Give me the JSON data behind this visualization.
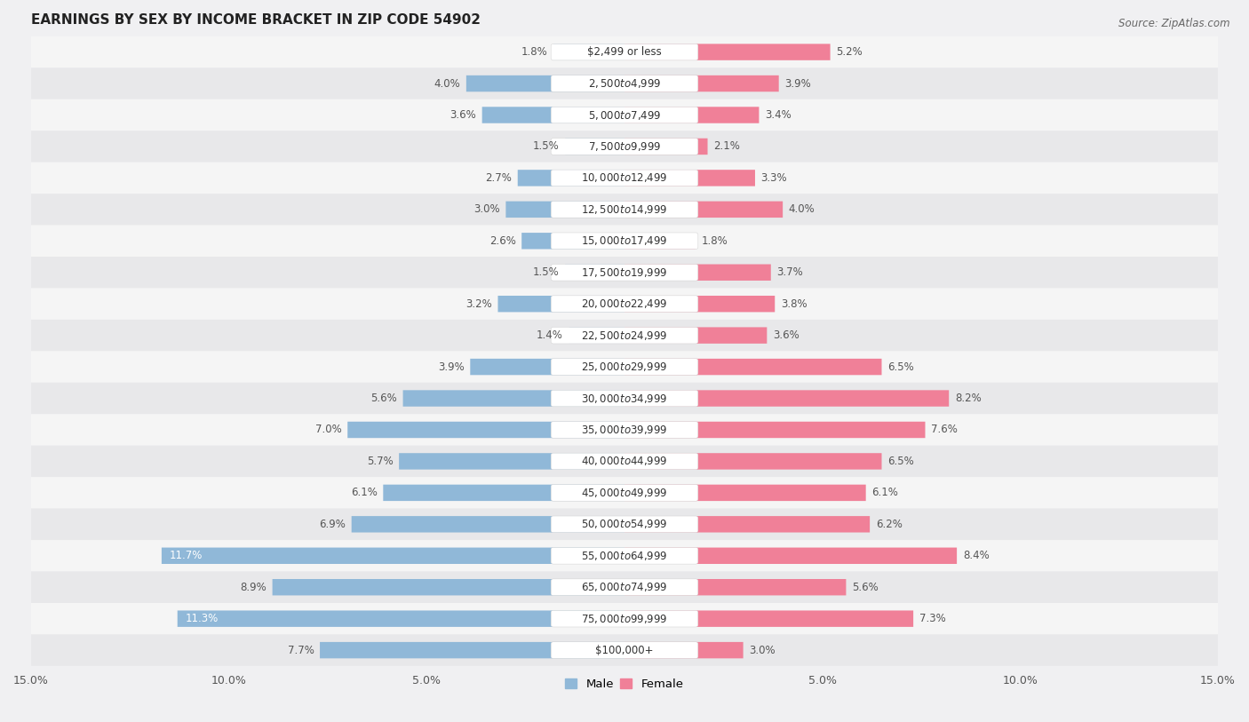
{
  "title": "EARNINGS BY SEX BY INCOME BRACKET IN ZIP CODE 54902",
  "source": "Source: ZipAtlas.com",
  "categories": [
    "$2,499 or less",
    "$2,500 to $4,999",
    "$5,000 to $7,499",
    "$7,500 to $9,999",
    "$10,000 to $12,499",
    "$12,500 to $14,999",
    "$15,000 to $17,499",
    "$17,500 to $19,999",
    "$20,000 to $22,499",
    "$22,500 to $24,999",
    "$25,000 to $29,999",
    "$30,000 to $34,999",
    "$35,000 to $39,999",
    "$40,000 to $44,999",
    "$45,000 to $49,999",
    "$50,000 to $54,999",
    "$55,000 to $64,999",
    "$65,000 to $74,999",
    "$75,000 to $99,999",
    "$100,000+"
  ],
  "male_values": [
    1.8,
    4.0,
    3.6,
    1.5,
    2.7,
    3.0,
    2.6,
    1.5,
    3.2,
    1.4,
    3.9,
    5.6,
    7.0,
    5.7,
    6.1,
    6.9,
    11.7,
    8.9,
    11.3,
    7.7
  ],
  "female_values": [
    5.2,
    3.9,
    3.4,
    2.1,
    3.3,
    4.0,
    1.8,
    3.7,
    3.8,
    3.6,
    6.5,
    8.2,
    7.6,
    6.5,
    6.1,
    6.2,
    8.4,
    5.6,
    7.3,
    3.0
  ],
  "male_color": "#90b8d8",
  "female_color": "#f08098",
  "male_label_color_default": "#555555",
  "male_label_color_highlight": "#ffffff",
  "highlight_male": [
    16,
    18
  ],
  "xlim": 15.0,
  "row_color_even": "#f5f5f5",
  "row_color_odd": "#e8e8ea",
  "bg_color": "#f0f0f2",
  "title_fontsize": 11,
  "source_fontsize": 8.5,
  "label_fontsize": 8.5,
  "tick_fontsize": 9,
  "category_fontsize": 8.5
}
